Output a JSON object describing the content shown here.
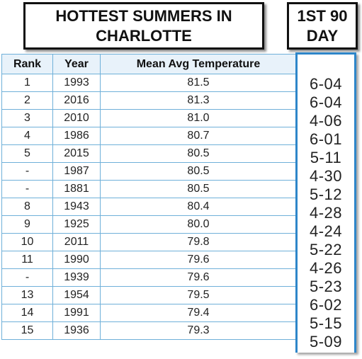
{
  "title": {
    "line1": "HOTTEST SUMMERS IN",
    "line2": "CHARLOTTE"
  },
  "day_header": {
    "line1": "1ST 90",
    "line2": "DAY"
  },
  "table": {
    "columns": [
      "Rank",
      "Year",
      "Mean Avg Temperature"
    ],
    "rows": [
      {
        "rank": "1",
        "year": "1993",
        "temp": "81.5",
        "first90": "6-04"
      },
      {
        "rank": "2",
        "year": "2016",
        "temp": "81.3",
        "first90": "6-04"
      },
      {
        "rank": "3",
        "year": "2010",
        "temp": "81.0",
        "first90": "4-06"
      },
      {
        "rank": "4",
        "year": "1986",
        "temp": "80.7",
        "first90": "6-01"
      },
      {
        "rank": "5",
        "year": "2015",
        "temp": "80.5",
        "first90": "5-11"
      },
      {
        "rank": "-",
        "year": "1987",
        "temp": "80.5",
        "first90": "4-30"
      },
      {
        "rank": "-",
        "year": "1881",
        "temp": "80.5",
        "first90": "5-12"
      },
      {
        "rank": "8",
        "year": "1943",
        "temp": "80.4",
        "first90": "4-28"
      },
      {
        "rank": "9",
        "year": "1925",
        "temp": "80.0",
        "first90": "4-24"
      },
      {
        "rank": "10",
        "year": "2011",
        "temp": "79.8",
        "first90": "5-22"
      },
      {
        "rank": "11",
        "year": "1990",
        "temp": "79.6",
        "first90": "4-26"
      },
      {
        "rank": "-",
        "year": "1939",
        "temp": "79.6",
        "first90": "5-23"
      },
      {
        "rank": "13",
        "year": "1954",
        "temp": "79.5",
        "first90": "6-02"
      },
      {
        "rank": "14",
        "year": "1991",
        "temp": "79.4",
        "first90": "5-15"
      },
      {
        "rank": "15",
        "year": "1936",
        "temp": "79.3",
        "first90": "5-09"
      }
    ]
  },
  "colors": {
    "border_blue": "#2e86c9",
    "grid_blue": "#6fb0d9",
    "header_bg": "#e8f2fa"
  }
}
